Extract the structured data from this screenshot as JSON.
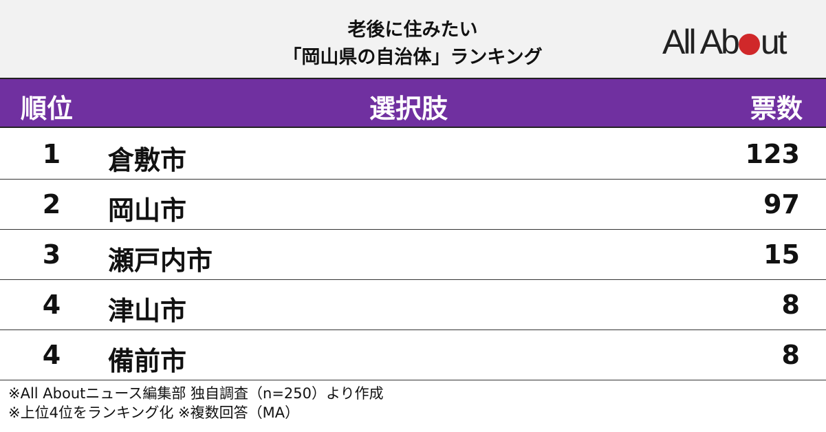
{
  "title_line1": "老後に住みたい",
  "title_line2": "「岡山県の自治体」ランキング",
  "logo": "All About",
  "colors": {
    "header": "#7030a0",
    "logo_dot": "#d0282a",
    "top_bg": "#f2f2f2"
  },
  "chart_data": {
    "type": "table",
    "columns": [
      "順位",
      "選択肢",
      "票数"
    ],
    "rows": [
      {
        "rank": "1",
        "name": "倉敷市",
        "votes": "123"
      },
      {
        "rank": "2",
        "name": "岡山市",
        "votes": "97"
      },
      {
        "rank": "3",
        "name": "瀬戸内市",
        "votes": "15"
      },
      {
        "rank": "4",
        "name": "津山市",
        "votes": "8"
      },
      {
        "rank": "4",
        "name": "備前市",
        "votes": "8"
      }
    ]
  },
  "footnotes": [
    "※All Aboutニュース編集部 独自調査（n=250）より作成",
    "※上位4位をランキング化 ※複数回答（MA）"
  ]
}
